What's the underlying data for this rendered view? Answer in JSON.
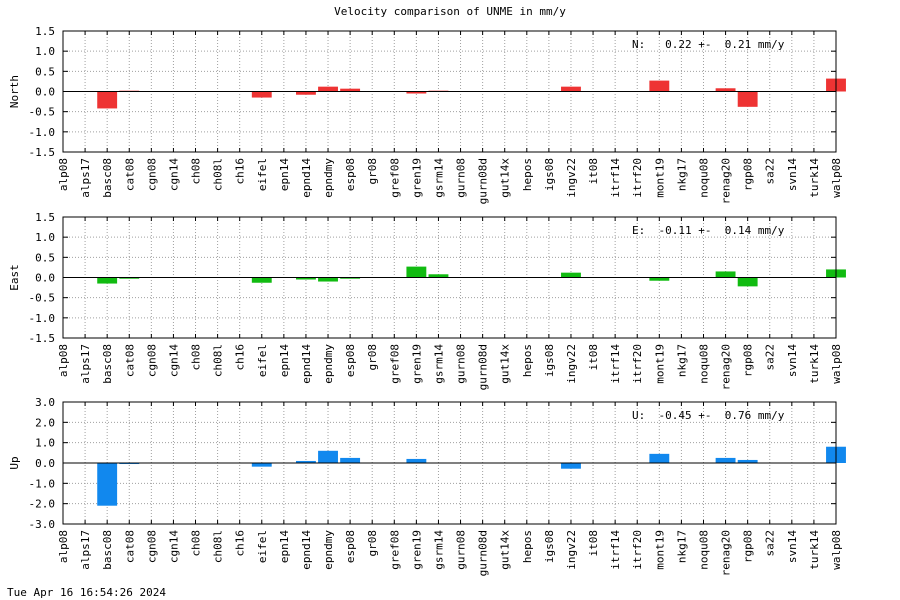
{
  "title": "Velocity comparison of UNME in mm/y",
  "footer": "Tue Apr 16 16:54:26 2024",
  "chart_data": [
    {
      "type": "bar",
      "ylabel": "North",
      "color": "#ee3333",
      "ylim": [
        -1.5,
        1.5
      ],
      "yticks": [
        "1.5",
        "1.0",
        "0.5",
        "0.0",
        "-0.5",
        "-1.0",
        "-1.5"
      ],
      "ytick_values": [
        1.5,
        1.0,
        0.5,
        0.0,
        -0.5,
        -1.0,
        -1.5
      ],
      "annotation": "N:   0.22 +-  0.21 mm/y",
      "grid": true,
      "categories": [
        "alp08",
        "alps17",
        "basc08",
        "cat08",
        "cgn08",
        "cgn14",
        "ch08",
        "ch08l",
        "ch16",
        "eifel",
        "epn14",
        "epnd14",
        "epndmy",
        "esp08",
        "gr08",
        "gref08",
        "gren19",
        "gsrm14",
        "gurn08",
        "gurn08d",
        "gut14x",
        "hepos",
        "igs08",
        "ingv22",
        "it08",
        "itrf14",
        "itrf20",
        "mont19",
        "nkg17",
        "noqu08",
        "renag20",
        "rgp08",
        "sa22",
        "svn14",
        "turk14",
        "walp08"
      ],
      "values": [
        0,
        0,
        -0.42,
        0.02,
        0,
        0,
        0,
        0,
        0,
        -0.15,
        0,
        -0.08,
        0.12,
        0.07,
        0,
        0,
        -0.05,
        0.02,
        0,
        0,
        0,
        0,
        0,
        0.12,
        0,
        0,
        0,
        0.27,
        0,
        0,
        0.08,
        -0.38,
        0,
        0,
        0,
        0.32
      ]
    },
    {
      "type": "bar",
      "ylabel": "East",
      "color": "#11bb11",
      "ylim": [
        -1.5,
        1.5
      ],
      "yticks": [
        "1.5",
        "1.0",
        "0.5",
        "0.0",
        "-0.5",
        "-1.0",
        "-1.5"
      ],
      "ytick_values": [
        1.5,
        1.0,
        0.5,
        0.0,
        -0.5,
        -1.0,
        -1.5
      ],
      "annotation": "E:  -0.11 +-  0.14 mm/y",
      "grid": true,
      "categories": [
        "alp08",
        "alps17",
        "basc08",
        "cat08",
        "cgn08",
        "cgn14",
        "ch08",
        "ch08l",
        "ch16",
        "eifel",
        "epn14",
        "epnd14",
        "epndmy",
        "esp08",
        "gr08",
        "gref08",
        "gren19",
        "gsrm14",
        "gurn08",
        "gurn08d",
        "gut14x",
        "hepos",
        "igs08",
        "ingv22",
        "it08",
        "itrf14",
        "itrf20",
        "mont19",
        "nkg17",
        "noqu08",
        "renag20",
        "rgp08",
        "sa22",
        "svn14",
        "turk14",
        "walp08"
      ],
      "values": [
        0,
        0,
        -0.15,
        -0.03,
        0,
        0,
        0,
        0,
        0,
        -0.13,
        0,
        -0.05,
        -0.1,
        -0.03,
        0,
        0,
        0.27,
        0.08,
        0,
        0,
        0,
        0,
        0,
        0.12,
        0,
        0,
        0,
        -0.08,
        0,
        0,
        0.15,
        -0.22,
        0,
        0,
        0,
        0.2
      ]
    },
    {
      "type": "bar",
      "ylabel": "Up",
      "color": "#1188ee",
      "ylim": [
        -3.0,
        3.0
      ],
      "yticks": [
        "3.0",
        "2.0",
        "1.0",
        "0.0",
        "-1.0",
        "-2.0",
        "-3.0"
      ],
      "ytick_values": [
        3.0,
        2.0,
        1.0,
        0.0,
        -1.0,
        -2.0,
        -3.0
      ],
      "annotation": "U:  -0.45 +-  0.76 mm/y",
      "grid": true,
      "categories": [
        "alp08",
        "alps17",
        "basc08",
        "cat08",
        "cgn08",
        "cgn14",
        "ch08",
        "ch08l",
        "ch16",
        "eifel",
        "epn14",
        "epnd14",
        "epndmy",
        "esp08",
        "gr08",
        "gref08",
        "gren19",
        "gsrm14",
        "gurn08",
        "gurn08d",
        "gut14x",
        "hepos",
        "igs08",
        "ingv22",
        "it08",
        "itrf14",
        "itrf20",
        "mont19",
        "nkg17",
        "noqu08",
        "renag20",
        "rgp08",
        "sa22",
        "svn14",
        "turk14",
        "walp08"
      ],
      "values": [
        0,
        0,
        -2.1,
        -0.05,
        0,
        0,
        0,
        0,
        0,
        -0.18,
        0,
        0.1,
        0.6,
        0.25,
        0,
        0,
        0.2,
        0,
        0,
        0,
        0,
        0,
        0,
        -0.28,
        0,
        0,
        0,
        0.45,
        0,
        0,
        0.25,
        0.15,
        0,
        0,
        0,
        0.8
      ]
    }
  ]
}
